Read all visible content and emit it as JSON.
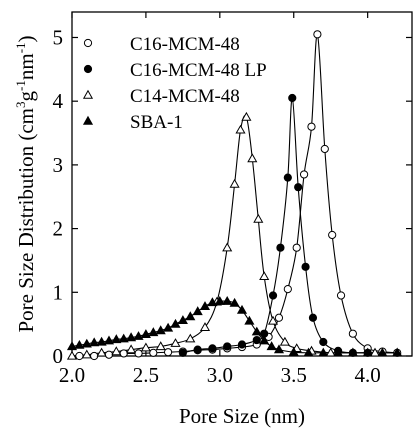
{
  "chart_data": {
    "type": "line",
    "xlabel": "Pore Size (nm)",
    "ylabel_parts": {
      "base": "Pore Size Distribution (cm",
      "exp1": "3",
      "mid": "g",
      "exp2": "-1",
      "end": "nm",
      "exp3": "-1",
      "close": ")"
    },
    "xlim": [
      2.0,
      4.3
    ],
    "ylim": [
      0,
      5.4
    ],
    "x_ticks": [
      2.0,
      2.5,
      3.0,
      3.5,
      4.0
    ],
    "x_tick_labels": [
      "2.0",
      "2.5",
      "3.0",
      "3.5",
      "4.0"
    ],
    "y_ticks": [
      0,
      1,
      2,
      3,
      4,
      5
    ],
    "y_tick_labels": [
      "0",
      "1",
      "2",
      "3",
      "4",
      "5"
    ],
    "grid": false,
    "legend_position": "top-left",
    "series": [
      {
        "name": "C16-MCM-48",
        "marker": "circle-open",
        "x": [
          2.05,
          2.15,
          2.25,
          2.35,
          2.45,
          2.55,
          2.65,
          2.75,
          2.85,
          2.95,
          3.05,
          3.15,
          3.25,
          3.33,
          3.4,
          3.46,
          3.52,
          3.57,
          3.62,
          3.66,
          3.71,
          3.76,
          3.82,
          3.9,
          4.0,
          4.1,
          4.2
        ],
        "y": [
          0.0,
          0.0,
          0.02,
          0.04,
          0.04,
          0.05,
          0.06,
          0.07,
          0.09,
          0.1,
          0.12,
          0.14,
          0.18,
          0.3,
          0.6,
          1.05,
          1.7,
          2.85,
          3.6,
          5.05,
          3.25,
          1.9,
          0.95,
          0.35,
          0.12,
          0.07,
          0.05
        ]
      },
      {
        "name": "C16-MCM-48 LP",
        "marker": "circle-filled",
        "x": [
          2.75,
          2.85,
          2.95,
          3.05,
          3.15,
          3.25,
          3.3,
          3.36,
          3.41,
          3.46,
          3.49,
          3.53,
          3.58,
          3.63,
          3.7,
          3.8,
          3.9,
          4.0
        ],
        "y": [
          0.05,
          0.1,
          0.12,
          0.15,
          0.18,
          0.25,
          0.35,
          0.95,
          1.7,
          2.8,
          4.05,
          2.65,
          1.4,
          0.6,
          0.22,
          0.08,
          0.05,
          0.05
        ]
      },
      {
        "name": "C14-MCM-48",
        "marker": "triangle-open",
        "x": [
          2.0,
          2.1,
          2.2,
          2.3,
          2.4,
          2.5,
          2.6,
          2.7,
          2.8,
          2.9,
          2.98,
          3.05,
          3.1,
          3.14,
          3.18,
          3.22,
          3.26,
          3.3,
          3.36,
          3.44,
          3.52,
          3.62,
          3.75,
          3.9,
          4.05,
          4.2
        ],
        "y": [
          0.0,
          0.02,
          0.05,
          0.07,
          0.1,
          0.13,
          0.15,
          0.2,
          0.27,
          0.45,
          0.85,
          1.7,
          2.7,
          3.55,
          3.75,
          3.1,
          2.15,
          1.25,
          0.55,
          0.22,
          0.12,
          0.08,
          0.05,
          0.05,
          0.05,
          0.05
        ]
      },
      {
        "name": "SBA-1",
        "marker": "triangle-filled",
        "x": [
          2.0,
          2.05,
          2.1,
          2.15,
          2.2,
          2.25,
          2.3,
          2.35,
          2.4,
          2.45,
          2.5,
          2.55,
          2.6,
          2.65,
          2.7,
          2.75,
          2.8,
          2.85,
          2.9,
          2.95,
          3.0,
          3.05,
          3.1,
          3.15,
          3.2,
          3.25,
          3.3,
          3.35,
          3.4,
          3.5,
          3.6,
          3.7,
          3.8,
          3.9,
          4.0,
          4.1,
          4.2
        ],
        "y": [
          0.15,
          0.17,
          0.19,
          0.21,
          0.22,
          0.24,
          0.26,
          0.27,
          0.29,
          0.31,
          0.34,
          0.37,
          0.4,
          0.44,
          0.5,
          0.56,
          0.62,
          0.7,
          0.78,
          0.84,
          0.86,
          0.86,
          0.83,
          0.72,
          0.55,
          0.38,
          0.24,
          0.15,
          0.1,
          0.06,
          0.05,
          0.05,
          0.05,
          0.05,
          0.05,
          0.05,
          0.05
        ]
      }
    ]
  }
}
